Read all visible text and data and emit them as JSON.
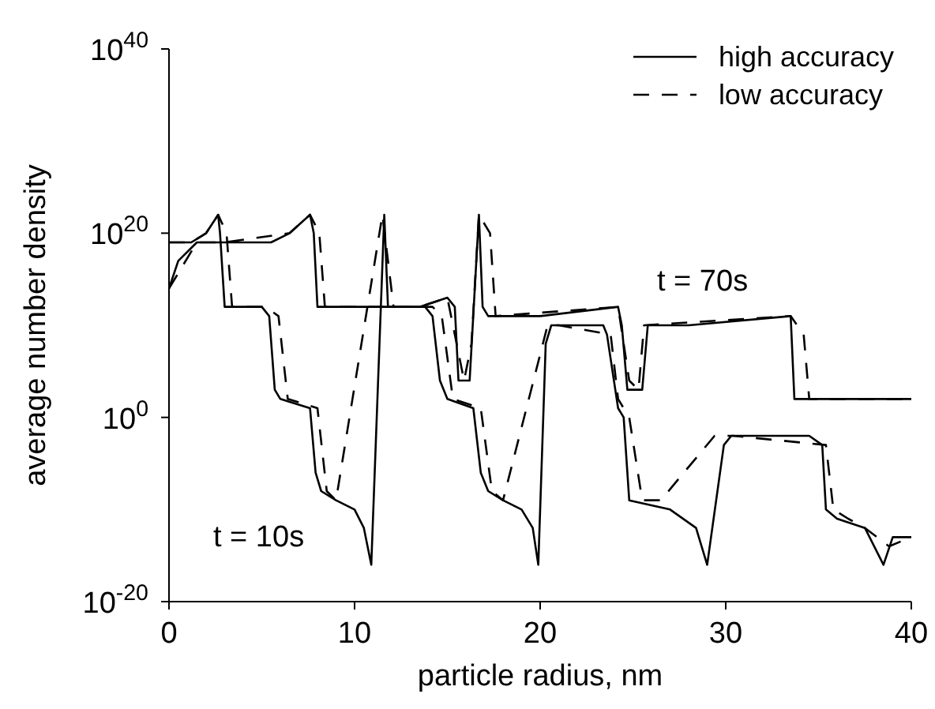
{
  "chart_data": {
    "type": "line",
    "xlabel": "particle radius, nm",
    "ylabel": "average number density",
    "log": "y",
    "grid": false,
    "legend": "top right",
    "marker": "none",
    "xlim": [
      0,
      40
    ],
    "xticks": [
      0,
      10,
      20,
      30,
      40
    ],
    "ylim": [
      1e-20,
      1e+40
    ],
    "yticks": [
      {
        "value": 1e-20,
        "label": "10$^{-20}$"
      },
      {
        "value": 1,
        "label": "10$^{0}$"
      },
      {
        "value": 1e+20,
        "label": "10$^{20}$"
      },
      {
        "value": 1e+40,
        "label": "10$^{40}$"
      }
    ],
    "annotations": [
      "t = 10s",
      "t = 70s"
    ],
    "series": [
      {
        "name": "high accuracy",
        "color": "#000000",
        "line_style": "solid",
        "x": [
          0,
          1.2,
          2,
          2.65,
          2.75,
          3,
          5,
          5.4,
          5.7,
          6,
          7.6,
          7.9,
          8.2,
          9,
          10,
          10.5,
          10.9,
          11.6,
          11.8,
          13.8,
          14.2,
          14.6,
          15,
          16.4,
          16.8,
          17.2,
          18,
          19,
          19.6,
          19.9,
          20.3,
          20.6,
          23.4,
          23.6,
          24.2,
          24.5,
          24.8,
          27,
          28.4,
          29,
          29.9,
          30.3,
          31,
          34.5,
          35.2,
          35.4,
          36,
          37.5,
          38.5,
          39,
          40
        ],
        "values": [
          1e+19,
          1e+19,
          1e+20,
          1e+22,
          1e+20,
          1000000000000.0,
          1000000000000.0,
          100000000000.0,
          1000.0,
          100.0,
          10.0,
          1e-06,
          1e-08,
          1e-09,
          1e-10,
          1e-12,
          1e-16,
          1e+22,
          1000000000000.0,
          1000000000000.0,
          100000000000.0,
          10000.0,
          100.0,
          10.0,
          1e-06,
          1e-08,
          1e-09,
          1e-10,
          1e-12,
          1e-16,
          100000000.0,
          10000000000.0,
          10000000000.0,
          1000000000.0,
          10.0,
          1,
          1e-09,
          1e-10,
          1e-12,
          1e-16,
          0.001,
          0.01,
          0.01,
          0.01,
          0.001,
          1e-10,
          1e-11,
          1e-12,
          1e-16,
          1e-13,
          1e-13
        ]
      },
      {
        "name": "low accuracy",
        "color": "#000000",
        "line_style": "dashed",
        "x": [
          0,
          1.2,
          2,
          2.65,
          3.1,
          3.4,
          5.2,
          5.9,
          6.4,
          8,
          8.5,
          9.0,
          11.5,
          12.1,
          14.2,
          14.7,
          15.3,
          16.8,
          17.4,
          18,
          20.4,
          21,
          23.8,
          24.2,
          24.8,
          25.5,
          26.5,
          29.4,
          30.4,
          35.4,
          35.8,
          36.6,
          37.5,
          38.8,
          40
        ],
        "values": [
          1e+19,
          1e+19,
          1e+20,
          1e+22,
          1e+20,
          1000000000000.0,
          1000000000000.0,
          100000000000.0,
          100.0,
          10.0,
          1e-08,
          1e-09,
          1e+22,
          1000000000000.0,
          1000000000000.0,
          100000000000.0,
          100.0,
          10.0,
          1e-08,
          1e-09,
          10000000000.0,
          10000000000.0,
          1000000000.0,
          100.0,
          1,
          1e-09,
          1e-09,
          0.01,
          0.01,
          0.001,
          1e-10,
          1e-11,
          1e-12,
          1e-14,
          1e-13
        ]
      },
      {
        "color": "#000000",
        "line_style": "solid",
        "x": [
          0,
          0.5,
          1.5,
          3,
          5.5,
          6.5,
          7.6,
          7.8,
          8,
          10,
          13.5,
          15,
          15.4,
          15.6,
          16.2,
          16.7,
          16.9,
          17.2,
          20,
          24.2,
          24.4,
          24.7,
          25.5,
          25.8,
          28,
          33.5,
          33.7,
          34,
          37,
          40
        ],
        "values": [
          100000000000000.0,
          1e+17,
          1e+19,
          1e+19,
          1e+19,
          1e+20,
          1e+22,
          1e+20,
          1000000000000.0,
          1000000000000.0,
          1000000000000.0,
          10000000000000.0,
          1000000000000.0,
          10000.0,
          10000.0,
          1e+22,
          1000000000000.0,
          100000000000.0,
          100000000000.0,
          1000000000000.0,
          10000000000.0,
          1000.0,
          1000.0,
          10000000000.0,
          10000000000.0,
          100000000000.0,
          100.0,
          100.0,
          100.0,
          100.0
        ]
      },
      {
        "color": "#000000",
        "line_style": "dashed",
        "x": [
          0,
          1.5,
          3,
          6.5,
          7.6,
          8.1,
          8.4,
          13.5,
          15,
          15.3,
          15.9,
          16.3,
          16.7,
          17.3,
          17.6,
          24.2,
          24.8,
          25.3,
          25.6,
          33.5,
          34.2,
          34.5,
          40
        ],
        "values": [
          100000000000000.0,
          1e+19,
          1e+19,
          1e+20,
          1e+22,
          1e+20,
          1000000000000.0,
          1000000000000.0,
          10000000000000.0,
          10000000000.0,
          10000.0,
          100000000.0,
          1e+22,
          1e+20,
          100000000000.0,
          1000000000000.0,
          10000.0,
          1000.0,
          10000000000.0,
          100000000000.0,
          1000000000.0,
          100.0,
          100.0
        ]
      }
    ]
  }
}
